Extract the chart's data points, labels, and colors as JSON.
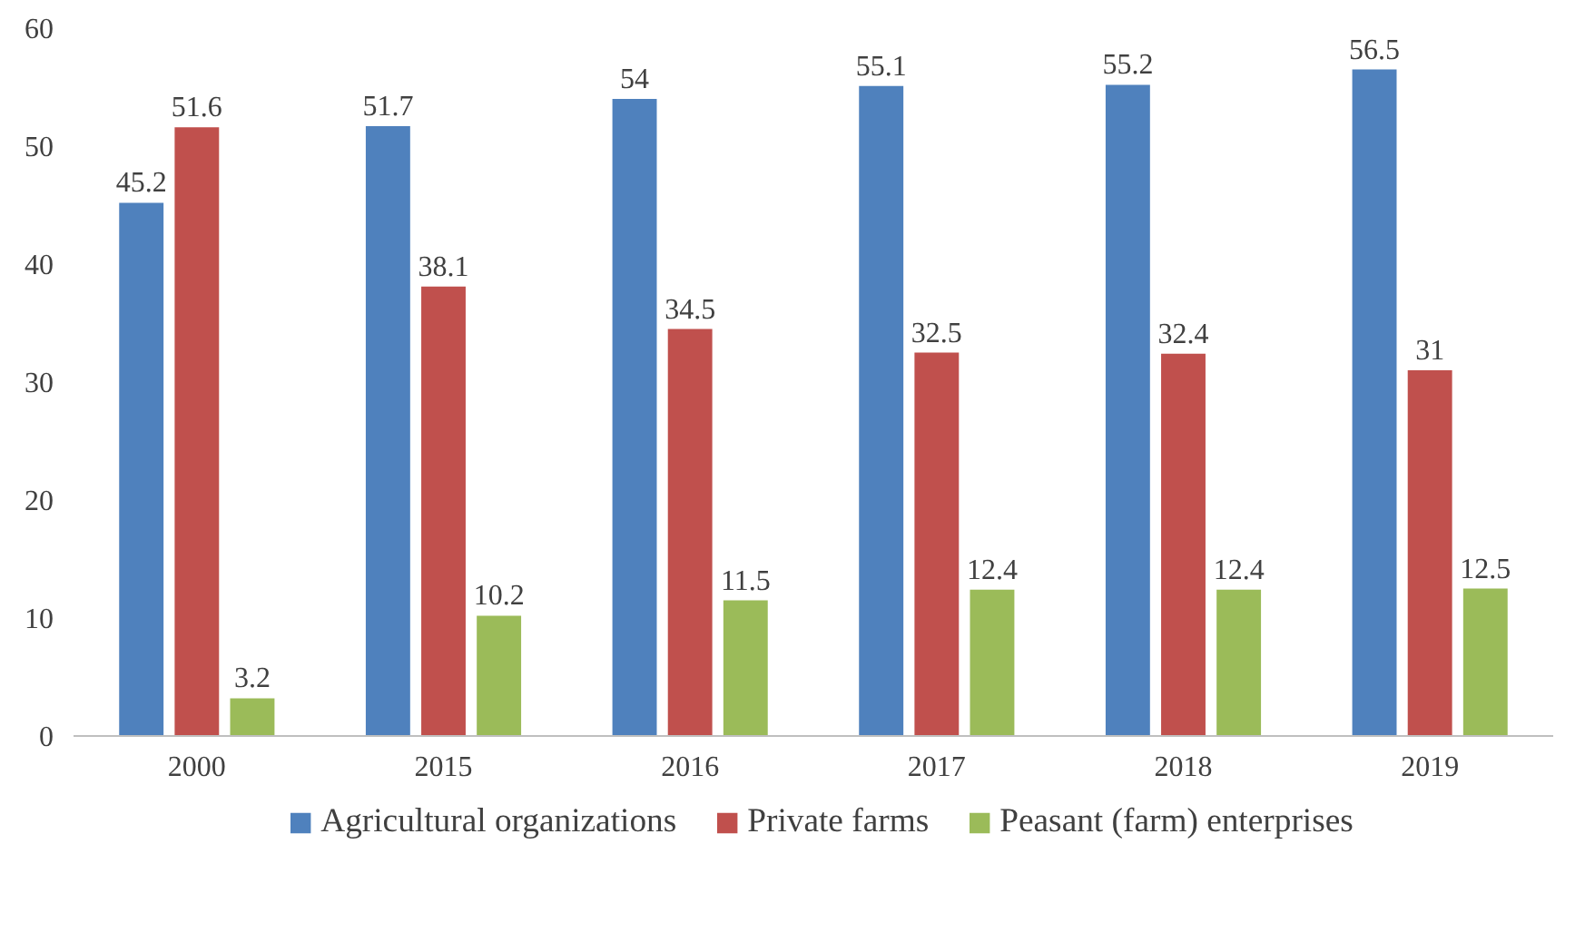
{
  "chart_data": {
    "type": "bar",
    "categories": [
      "2000",
      "2015",
      "2016",
      "2017",
      "2018",
      "2019"
    ],
    "series": [
      {
        "name": "Agricultural organizations",
        "color": "#4f81bd",
        "values": [
          45.2,
          51.7,
          54,
          55.1,
          55.2,
          56.5
        ]
      },
      {
        "name": "Private farms",
        "color": "#c0504d",
        "values": [
          51.6,
          38.1,
          34.5,
          32.5,
          32.4,
          31
        ]
      },
      {
        "name": "Peasant (farm) enterprises",
        "color": "#9bbb59",
        "values": [
          3.2,
          10.2,
          11.5,
          12.4,
          12.4,
          12.5
        ]
      }
    ],
    "ylim": [
      0,
      60
    ],
    "yticks": [
      0,
      10,
      20,
      30,
      40,
      50,
      60
    ],
    "grid": false,
    "legend": "bottom",
    "data_labels": true
  }
}
